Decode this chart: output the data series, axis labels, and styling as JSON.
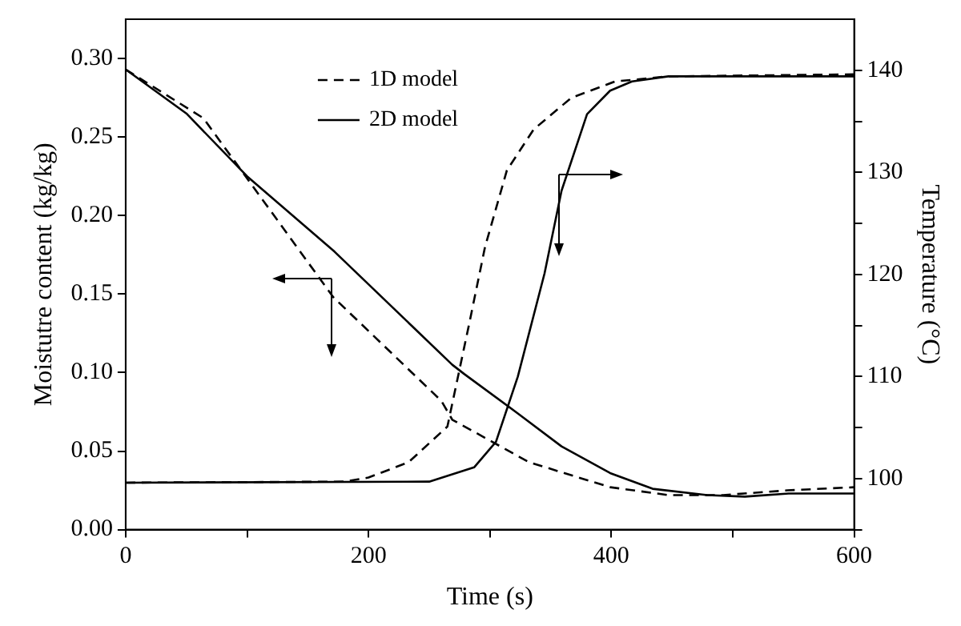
{
  "chart_data": {
    "type": "line",
    "xlabel": "Time (s)",
    "ylabel": "Moistutre content (kg/kg)",
    "y2label": "Temperature (°C)",
    "xlim": [
      0,
      600
    ],
    "xticks": [
      0,
      {
        "value": 100,
        "label": null
      },
      200,
      {
        "value": 300,
        "label": null
      },
      400,
      {
        "value": 500,
        "label": null
      },
      600
    ],
    "ylim": [
      0,
      0.325
    ],
    "yticks": [
      {
        "value": 0,
        "label": "0.00"
      },
      0.05,
      {
        "value": 0.1,
        "label": "0.10"
      },
      0.15,
      {
        "value": 0.2,
        "label": "0.20"
      },
      0.25,
      {
        "value": 0.3,
        "label": "0.30"
      }
    ],
    "y2lim": [
      95,
      145
    ],
    "y2ticks": [
      {
        "value": 95,
        "label": null
      },
      100,
      {
        "value": 105,
        "label": null
      },
      110,
      {
        "value": 115,
        "label": null
      },
      120,
      {
        "value": 125,
        "label": null
      },
      130,
      {
        "value": 135,
        "label": null
      },
      140
    ],
    "grid": false,
    "legend": "top left",
    "marker": "none",
    "series": [
      {
        "name": "1D model",
        "color": "#000000",
        "line_style": "dashed",
        "x": [
          0,
          64,
          171,
          260,
          269,
          332,
          399,
          447,
          492,
          545,
          600
        ],
        "values": [
          0.293,
          0.262,
          0.148,
          0.082,
          0.07,
          0.043,
          0.027,
          0.022,
          0.022,
          0.025,
          0.027
        ]
      },
      {
        "name": "2D model",
        "color": "#000000",
        "line_style": "solid",
        "x": [
          0,
          50,
          100,
          172,
          269,
          279,
          323,
          359,
          399,
          434,
          479,
          510,
          546,
          600
        ],
        "values": [
          0.293,
          0.265,
          0.225,
          0.177,
          0.105,
          0.099,
          0.074,
          0.053,
          0.036,
          0.026,
          0.022,
          0.021,
          0.023,
          0.023
        ]
      },
      {
        "axis": "y2",
        "color": "#000000",
        "line_style": "dashed",
        "x": [
          0,
          180,
          200,
          233,
          265,
          283,
          296,
          314,
          336,
          367,
          403,
          447,
          600
        ],
        "values": [
          99.6,
          99.7,
          100.1,
          101.6,
          105.1,
          115.2,
          122.7,
          130.2,
          134.2,
          137.3,
          138.9,
          139.4,
          139.6
        ]
      },
      {
        "axis": "y2",
        "color": "#000000",
        "line_style": "solid",
        "x": [
          0,
          250,
          287,
          305,
          323,
          345,
          359,
          380,
          399,
          417,
          447,
          600
        ],
        "values": [
          99.6,
          99.7,
          101.1,
          103.6,
          110,
          120.1,
          128.2,
          135.7,
          138,
          138.9,
          139.4,
          139.4
        ]
      }
    ]
  }
}
